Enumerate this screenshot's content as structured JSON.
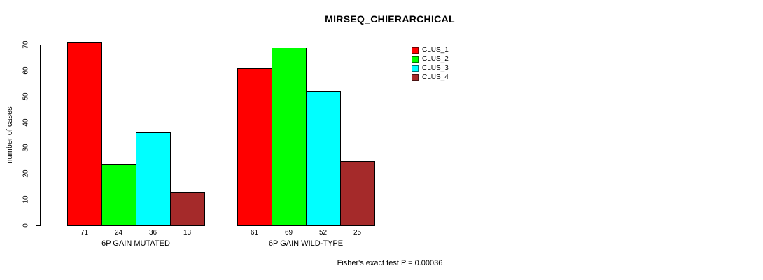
{
  "chart_data": {
    "type": "bar",
    "title": "MIRSEQ_CHIERARCHICAL",
    "ylabel": "number of cases",
    "ylim": [
      0,
      70
    ],
    "yticks": [
      0,
      10,
      20,
      30,
      40,
      50,
      60,
      70
    ],
    "grid": false,
    "legend_position": "top-right",
    "legend": [
      {
        "label": "CLUS_1",
        "color": "#FF0000"
      },
      {
        "label": "CLUS_2",
        "color": "#00FF00"
      },
      {
        "label": "CLUS_3",
        "color": "#00FFFF"
      },
      {
        "label": "CLUS_4",
        "color": "#A52A2A"
      }
    ],
    "series_colors": [
      "#FF0000",
      "#00FF00",
      "#00FFFF",
      "#A52A2A"
    ],
    "groups": [
      {
        "label": "6P GAIN MUTATED",
        "values": [
          71,
          24,
          36,
          13
        ]
      },
      {
        "label": "6P GAIN WILD-TYPE",
        "values": [
          61,
          69,
          52,
          25
        ]
      }
    ],
    "footer": "Fisher's exact test P = 0.00036"
  }
}
